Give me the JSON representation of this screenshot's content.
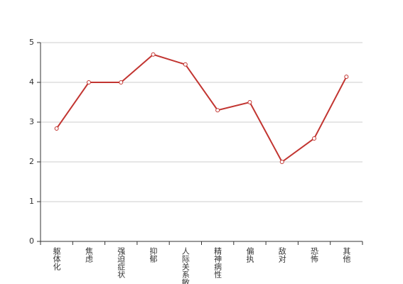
{
  "chart_data": {
    "type": "line",
    "categories": [
      "躯体化",
      "焦虑",
      "强迫症状",
      "抑郁",
      "人际关系敏感",
      "精神病性",
      "偏执",
      "敌对",
      "恐怖",
      "其他"
    ],
    "series": [
      {
        "color": "#c23531",
        "values": [
          2.84,
          4.0,
          4.0,
          4.7,
          4.45,
          3.3,
          3.5,
          2.0,
          2.59,
          4.14
        ]
      }
    ],
    "ylim": [
      0,
      5
    ],
    "yticks": [
      0,
      1,
      2,
      3,
      4,
      5
    ],
    "grid": true
  }
}
